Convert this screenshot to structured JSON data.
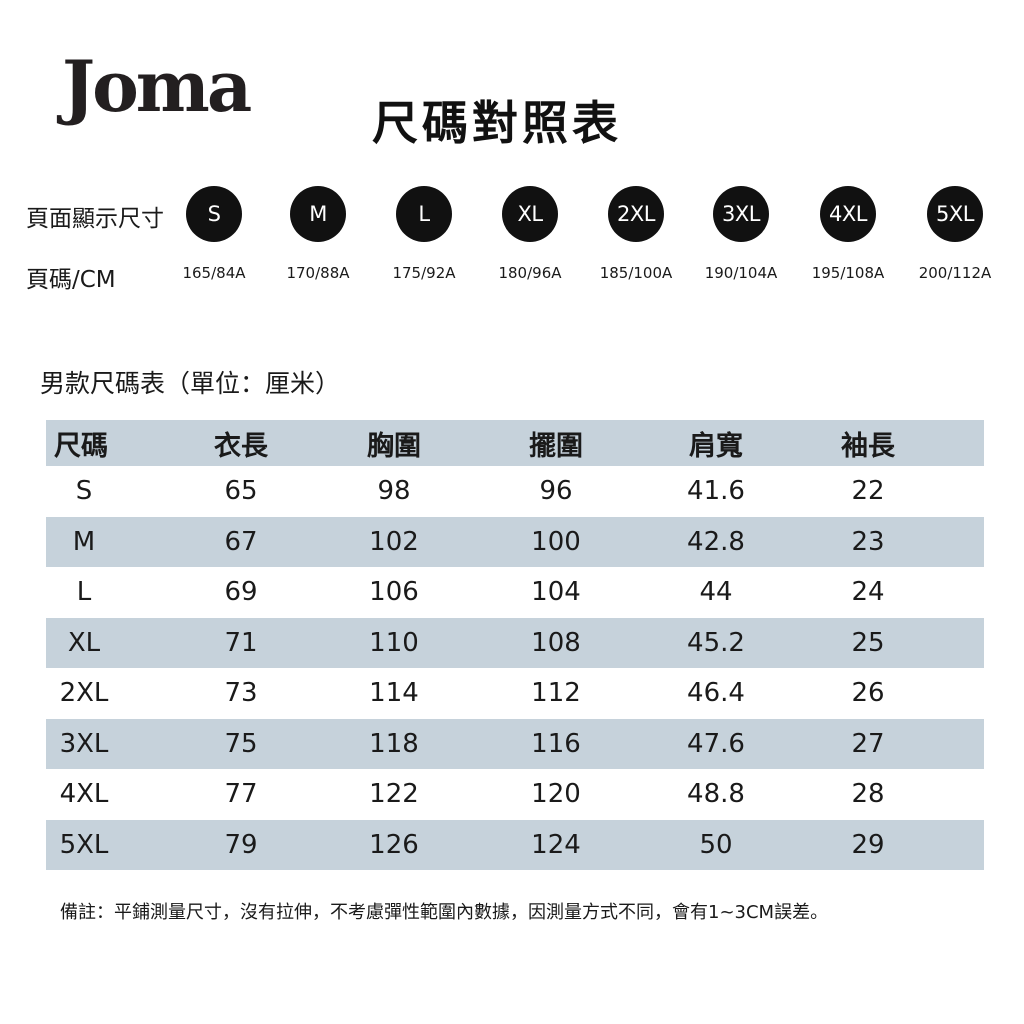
{
  "brand": {
    "logo_text": "Joma"
  },
  "title": "尺碼對照表",
  "size_strip": {
    "display_label": "頁面顯示尺寸",
    "code_label": "頁碼/CM",
    "sizes": [
      {
        "label": "S",
        "code": "165/84A"
      },
      {
        "label": "M",
        "code": "170/88A"
      },
      {
        "label": "L",
        "code": "175/92A"
      },
      {
        "label": "XL",
        "code": "180/96A"
      },
      {
        "label": "2XL",
        "code": "185/100A"
      },
      {
        "label": "3XL",
        "code": "190/104A"
      },
      {
        "label": "4XL",
        "code": "195/108A"
      },
      {
        "label": "5XL",
        "code": "200/112A"
      }
    ]
  },
  "table": {
    "title": "男款尺碼表（單位：厘米）",
    "headers": [
      "尺碼",
      "衣長",
      "胸圍",
      "擺圍",
      "肩寬",
      "袖長"
    ],
    "rows": [
      [
        "S",
        "65",
        "98",
        "96",
        "41.6",
        "22"
      ],
      [
        "M",
        "67",
        "102",
        "100",
        "42.8",
        "23"
      ],
      [
        "L",
        "69",
        "106",
        "104",
        "44",
        "24"
      ],
      [
        "XL",
        "71",
        "110",
        "108",
        "45.2",
        "25"
      ],
      [
        "2XL",
        "73",
        "114",
        "112",
        "46.4",
        "26"
      ],
      [
        "3XL",
        "75",
        "118",
        "116",
        "47.6",
        "27"
      ],
      [
        "4XL",
        "77",
        "122",
        "120",
        "48.8",
        "28"
      ],
      [
        "5XL",
        "79",
        "126",
        "124",
        "50",
        "29"
      ]
    ]
  },
  "note": "備註：平鋪測量尺寸，沒有拉伸，不考慮彈性範圍內數據，因測量方式不同，會有1~3CM誤差。",
  "colors": {
    "row_shade": "#c6d2db",
    "circle": "#111111",
    "text": "#1a1a1a"
  }
}
